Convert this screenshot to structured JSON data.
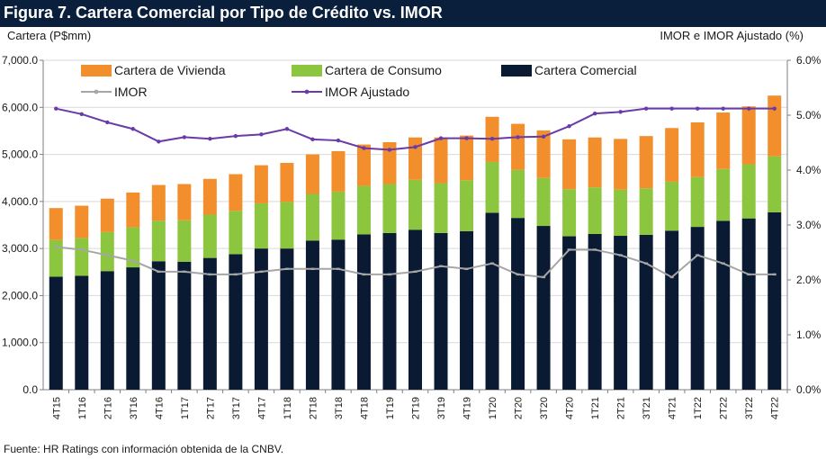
{
  "header": {
    "title": "Figura 7. Cartera Comercial por Tipo de Crédito vs. IMOR"
  },
  "footer": {
    "source": "Fuente: HR Ratings con información obtenida de la CNBV."
  },
  "colors": {
    "vivienda": "#f28e2b",
    "consumo": "#8cc63f",
    "comercial": "#0b1a33",
    "imor": "#a6a6a6",
    "imor_ajustado": "#6a3aa8",
    "title_bar": "#0a1f3c"
  },
  "chart_data": {
    "type": "bar",
    "stacked": true,
    "categories": [
      "4T15",
      "1T16",
      "2T16",
      "3T16",
      "4T16",
      "1T17",
      "2T17",
      "3T17",
      "4T17",
      "1T18",
      "2T18",
      "3T18",
      "4T18",
      "1T19",
      "2T19",
      "3T19",
      "4T19",
      "1T20",
      "2T20",
      "3T20",
      "4T20",
      "1T21",
      "2T21",
      "3T21",
      "4T21",
      "1T22",
      "2T22",
      "3T22",
      "4T22"
    ],
    "ylabel": "Cartera (P$mm)",
    "y2label": "IMOR e IMOR Ajustado (%)",
    "ylim": [
      0,
      7000
    ],
    "y2lim": [
      0,
      6
    ],
    "yticks": [
      "0.0",
      "1,000.0",
      "2,000.0",
      "3,000.0",
      "4,000.0",
      "5,000.0",
      "6,000.0",
      "7,000.0"
    ],
    "y2ticks": [
      "0.0%",
      "1.0%",
      "2.0%",
      "3.0%",
      "4.0%",
      "5.0%",
      "6.0%"
    ],
    "grid": true,
    "legend": "top",
    "series": [
      {
        "name": "Cartera Comercial",
        "axis": "left",
        "kind": "bar",
        "values": [
          2400,
          2420,
          2520,
          2600,
          2730,
          2720,
          2800,
          2880,
          3000,
          3000,
          3170,
          3190,
          3300,
          3330,
          3400,
          3330,
          3370,
          3760,
          3650,
          3480,
          3260,
          3310,
          3270,
          3290,
          3380,
          3460,
          3590,
          3640,
          3770
        ]
      },
      {
        "name": "Cartera de Consumo",
        "axis": "left",
        "kind": "bar",
        "values": [
          780,
          800,
          830,
          850,
          860,
          880,
          920,
          920,
          960,
          990,
          990,
          1020,
          1030,
          1040,
          1060,
          1060,
          1080,
          1080,
          1020,
          1020,
          1000,
          990,
          980,
          990,
          1040,
          1060,
          1100,
          1150,
          1190
        ]
      },
      {
        "name": "Cartera de Vivienda",
        "axis": "left",
        "kind": "bar",
        "values": [
          680,
          690,
          710,
          740,
          760,
          770,
          760,
          780,
          810,
          830,
          840,
          860,
          880,
          890,
          900,
          970,
          950,
          960,
          980,
          1010,
          1060,
          1060,
          1080,
          1110,
          1140,
          1160,
          1200,
          1230,
          1290
        ]
      },
      {
        "name": "IMOR",
        "axis": "right",
        "kind": "line",
        "values": [
          2.6,
          2.55,
          2.45,
          2.35,
          2.15,
          2.15,
          2.1,
          2.1,
          2.15,
          2.2,
          2.2,
          2.2,
          2.1,
          2.1,
          2.15,
          2.25,
          2.2,
          2.3,
          2.1,
          2.05,
          2.55,
          2.55,
          2.45,
          2.3,
          2.05,
          2.45,
          2.3,
          2.1,
          2.1
        ]
      },
      {
        "name": "IMOR Ajustado",
        "axis": "right",
        "kind": "line",
        "values": [
          5.12,
          5.02,
          4.87,
          4.75,
          4.52,
          4.6,
          4.57,
          4.62,
          4.65,
          4.75,
          4.56,
          4.54,
          4.4,
          4.37,
          4.42,
          4.58,
          4.58,
          4.57,
          4.6,
          4.61,
          4.8,
          5.03,
          5.06,
          5.12,
          5.12,
          5.12,
          5.12,
          5.12,
          5.12
        ]
      }
    ]
  }
}
